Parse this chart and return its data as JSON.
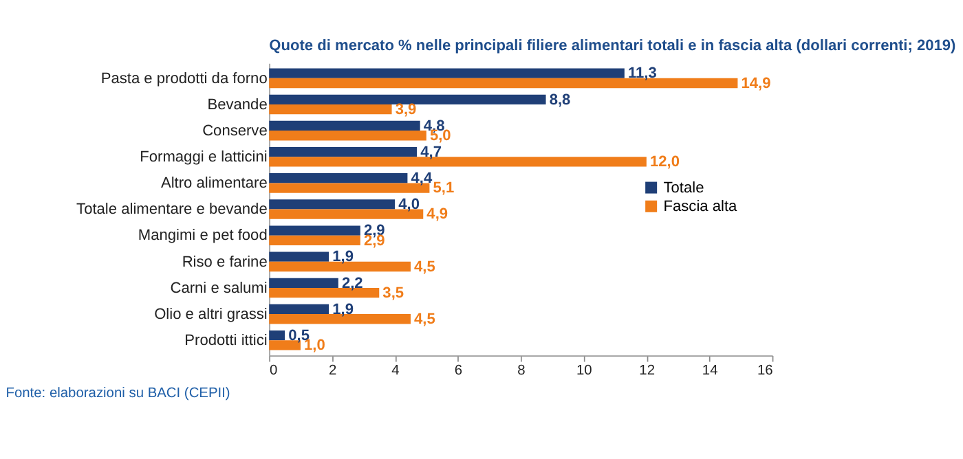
{
  "chart_data": {
    "type": "bar",
    "orientation": "horizontal",
    "title": "Quote di mercato % nelle principali filiere alimentari totali e in fascia alta (dollari correnti; 2019)",
    "categories": [
      "Pasta e prodotti da forno",
      "Bevande",
      "Conserve",
      "Formaggi e latticini",
      "Altro alimentare",
      "Totale alimentare e bevande",
      "Mangimi e pet food",
      "Riso e farine",
      "Carni e salumi",
      "Olio e altri grassi",
      "Prodotti ittici"
    ],
    "series": [
      {
        "name": "Totale",
        "color": "#1f3f77",
        "values": [
          11.3,
          8.8,
          4.8,
          4.7,
          4.4,
          4.0,
          2.9,
          1.9,
          2.2,
          1.9,
          0.5
        ],
        "value_labels": [
          "11,3",
          "8,8",
          "4,8",
          "4,7",
          "4,4",
          "4,0",
          "2,9",
          "1,9",
          "2,2",
          "1,9",
          "0,5"
        ]
      },
      {
        "name": "Fascia alta",
        "color": "#f07d1a",
        "values": [
          14.9,
          3.9,
          5.0,
          12.0,
          5.1,
          4.9,
          2.9,
          4.5,
          3.5,
          4.5,
          1.0
        ],
        "value_labels": [
          "14,9",
          "3,9",
          "5,0",
          "12,0",
          "5,1",
          "4,9",
          "2,9",
          "4,5",
          "3,5",
          "4,5",
          "1,0"
        ]
      }
    ],
    "xlim": [
      0,
      16
    ],
    "xticks": [
      0,
      2,
      4,
      6,
      8,
      10,
      12,
      14,
      16
    ],
    "grid": false,
    "legend": "right",
    "annotations": [
      "Fonte: elaborazioni su BACI (CEPII)"
    ]
  }
}
